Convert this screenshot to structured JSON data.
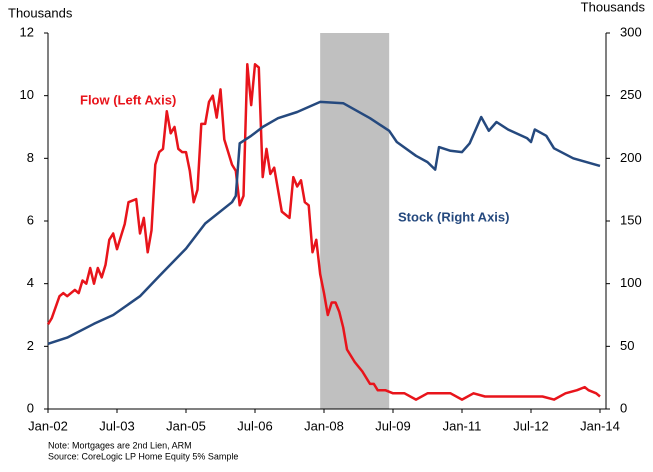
{
  "chart_data": {
    "type": "line",
    "y_label": "Thousands",
    "y2_label": "Thousands",
    "notes": [
      "Note: Mortgages are 2nd Lien, ARM",
      "Source: CoreLogic LP Home Equity 5% Sample"
    ],
    "xlim": [
      "2002-01",
      "2014-01"
    ],
    "xticks": [
      {
        "value": "2002-01",
        "label": "Jan-02"
      },
      {
        "value": "2003-07",
        "label": "Jul-03"
      },
      {
        "value": "2005-01",
        "label": "Jan-05"
      },
      {
        "value": "2006-07",
        "label": "Jul-06"
      },
      {
        "value": "2008-01",
        "label": "Jan-08"
      },
      {
        "value": "2009-07",
        "label": "Jul-09"
      },
      {
        "value": "2011-01",
        "label": "Jan-11"
      },
      {
        "value": "2012-07",
        "label": "Jul-12"
      },
      {
        "value": "2014-01",
        "label": "Jan-14"
      }
    ],
    "ylim": [
      0,
      12
    ],
    "yticks": [
      0,
      2,
      4,
      6,
      8,
      10,
      12
    ],
    "y2lim": [
      0,
      300
    ],
    "y2ticks": [
      0,
      50,
      100,
      150,
      200,
      250,
      300
    ],
    "shaded_range": [
      "2007-12",
      "2009-06"
    ],
    "shade_color": "#c0c0c0",
    "series": [
      {
        "name": "Flow (Left Axis)",
        "color": "#e8141b",
        "axis": "y",
        "x": [
          "2002-01",
          "2002-02",
          "2002-04",
          "2002-05",
          "2002-06",
          "2002-08",
          "2002-09",
          "2002-10",
          "2002-11",
          "2002-12",
          "2003-01",
          "2003-02",
          "2003-03",
          "2003-04",
          "2003-05",
          "2003-06",
          "2003-07",
          "2003-08",
          "2003-09",
          "2003-10",
          "2003-12",
          "2004-01",
          "2004-02",
          "2004-03",
          "2004-04",
          "2004-05",
          "2004-06",
          "2004-07",
          "2004-08",
          "2004-09",
          "2004-10",
          "2004-11",
          "2004-12",
          "2005-01",
          "2005-02",
          "2005-03",
          "2005-04",
          "2005-05",
          "2005-06",
          "2005-07",
          "2005-08",
          "2005-09",
          "2005-10",
          "2005-11",
          "2005-12",
          "2006-01",
          "2006-02",
          "2006-03",
          "2006-04",
          "2006-05",
          "2006-06",
          "2006-07",
          "2006-08",
          "2006-09",
          "2006-10",
          "2006-11",
          "2006-12",
          "2007-01",
          "2007-02",
          "2007-04",
          "2007-05",
          "2007-06",
          "2007-07",
          "2007-08",
          "2007-09",
          "2007-10",
          "2007-11",
          "2007-12",
          "2008-01",
          "2008-02",
          "2008-03",
          "2008-04",
          "2008-05",
          "2008-06",
          "2008-07",
          "2008-09",
          "2008-11",
          "2009-01",
          "2009-02",
          "2009-03",
          "2009-05",
          "2009-07",
          "2009-10",
          "2010-01",
          "2010-04",
          "2010-07",
          "2010-10",
          "2011-01",
          "2011-04",
          "2011-07",
          "2011-10",
          "2012-01",
          "2012-04",
          "2012-07",
          "2012-10",
          "2013-01",
          "2013-04",
          "2013-07",
          "2013-09",
          "2013-10",
          "2013-12",
          "2014-01"
        ],
        "values": [
          2.7,
          2.9,
          3.6,
          3.7,
          3.6,
          3.8,
          3.7,
          4.1,
          4.0,
          4.5,
          4.0,
          4.5,
          4.2,
          4.6,
          5.4,
          5.6,
          5.1,
          5.5,
          5.9,
          6.6,
          6.7,
          5.6,
          6.1,
          5.0,
          5.7,
          7.8,
          8.2,
          8.3,
          9.5,
          8.8,
          9.0,
          8.3,
          8.2,
          8.2,
          7.6,
          6.6,
          7.0,
          9.1,
          9.1,
          9.8,
          10.0,
          9.3,
          10.2,
          8.6,
          8.2,
          7.8,
          7.6,
          6.5,
          6.8,
          11.0,
          9.7,
          11.0,
          10.9,
          7.4,
          8.3,
          7.5,
          7.7,
          7.0,
          6.3,
          6.1,
          7.4,
          7.1,
          7.3,
          6.6,
          6.5,
          5.0,
          5.4,
          4.3,
          3.7,
          3.0,
          3.4,
          3.4,
          3.1,
          2.6,
          1.9,
          1.5,
          1.2,
          0.8,
          0.8,
          0.6,
          0.6,
          0.5,
          0.5,
          0.3,
          0.5,
          0.5,
          0.5,
          0.3,
          0.5,
          0.4,
          0.4,
          0.4,
          0.4,
          0.4,
          0.4,
          0.3,
          0.5,
          0.6,
          0.7,
          0.6,
          0.5,
          0.4
        ]
      },
      {
        "name": "Stock (Right Axis)",
        "color": "#25497e",
        "axis": "y2",
        "x": [
          "2002-01",
          "2002-06",
          "2003-01",
          "2003-06",
          "2004-01",
          "2004-06",
          "2005-01",
          "2005-06",
          "2006-01",
          "2006-02",
          "2006-03",
          "2006-06",
          "2006-09",
          "2007-01",
          "2007-06",
          "2007-12",
          "2008-06",
          "2009-01",
          "2009-06",
          "2009-08",
          "2010-01",
          "2010-04",
          "2010-06",
          "2010-07",
          "2010-10",
          "2011-01",
          "2011-03",
          "2011-06",
          "2011-08",
          "2011-10",
          "2012-01",
          "2012-06",
          "2012-07",
          "2012-08",
          "2012-11",
          "2013-01",
          "2013-06",
          "2014-01"
        ],
        "values": [
          52,
          57,
          68,
          75,
          90,
          106,
          128,
          148,
          165,
          170,
          212,
          218,
          225,
          232,
          237,
          245,
          244,
          232,
          222,
          213,
          202,
          197,
          191,
          209,
          206,
          205,
          212,
          233,
          222,
          229,
          223,
          216,
          213,
          223,
          218,
          208,
          200,
          194
        ]
      }
    ]
  }
}
